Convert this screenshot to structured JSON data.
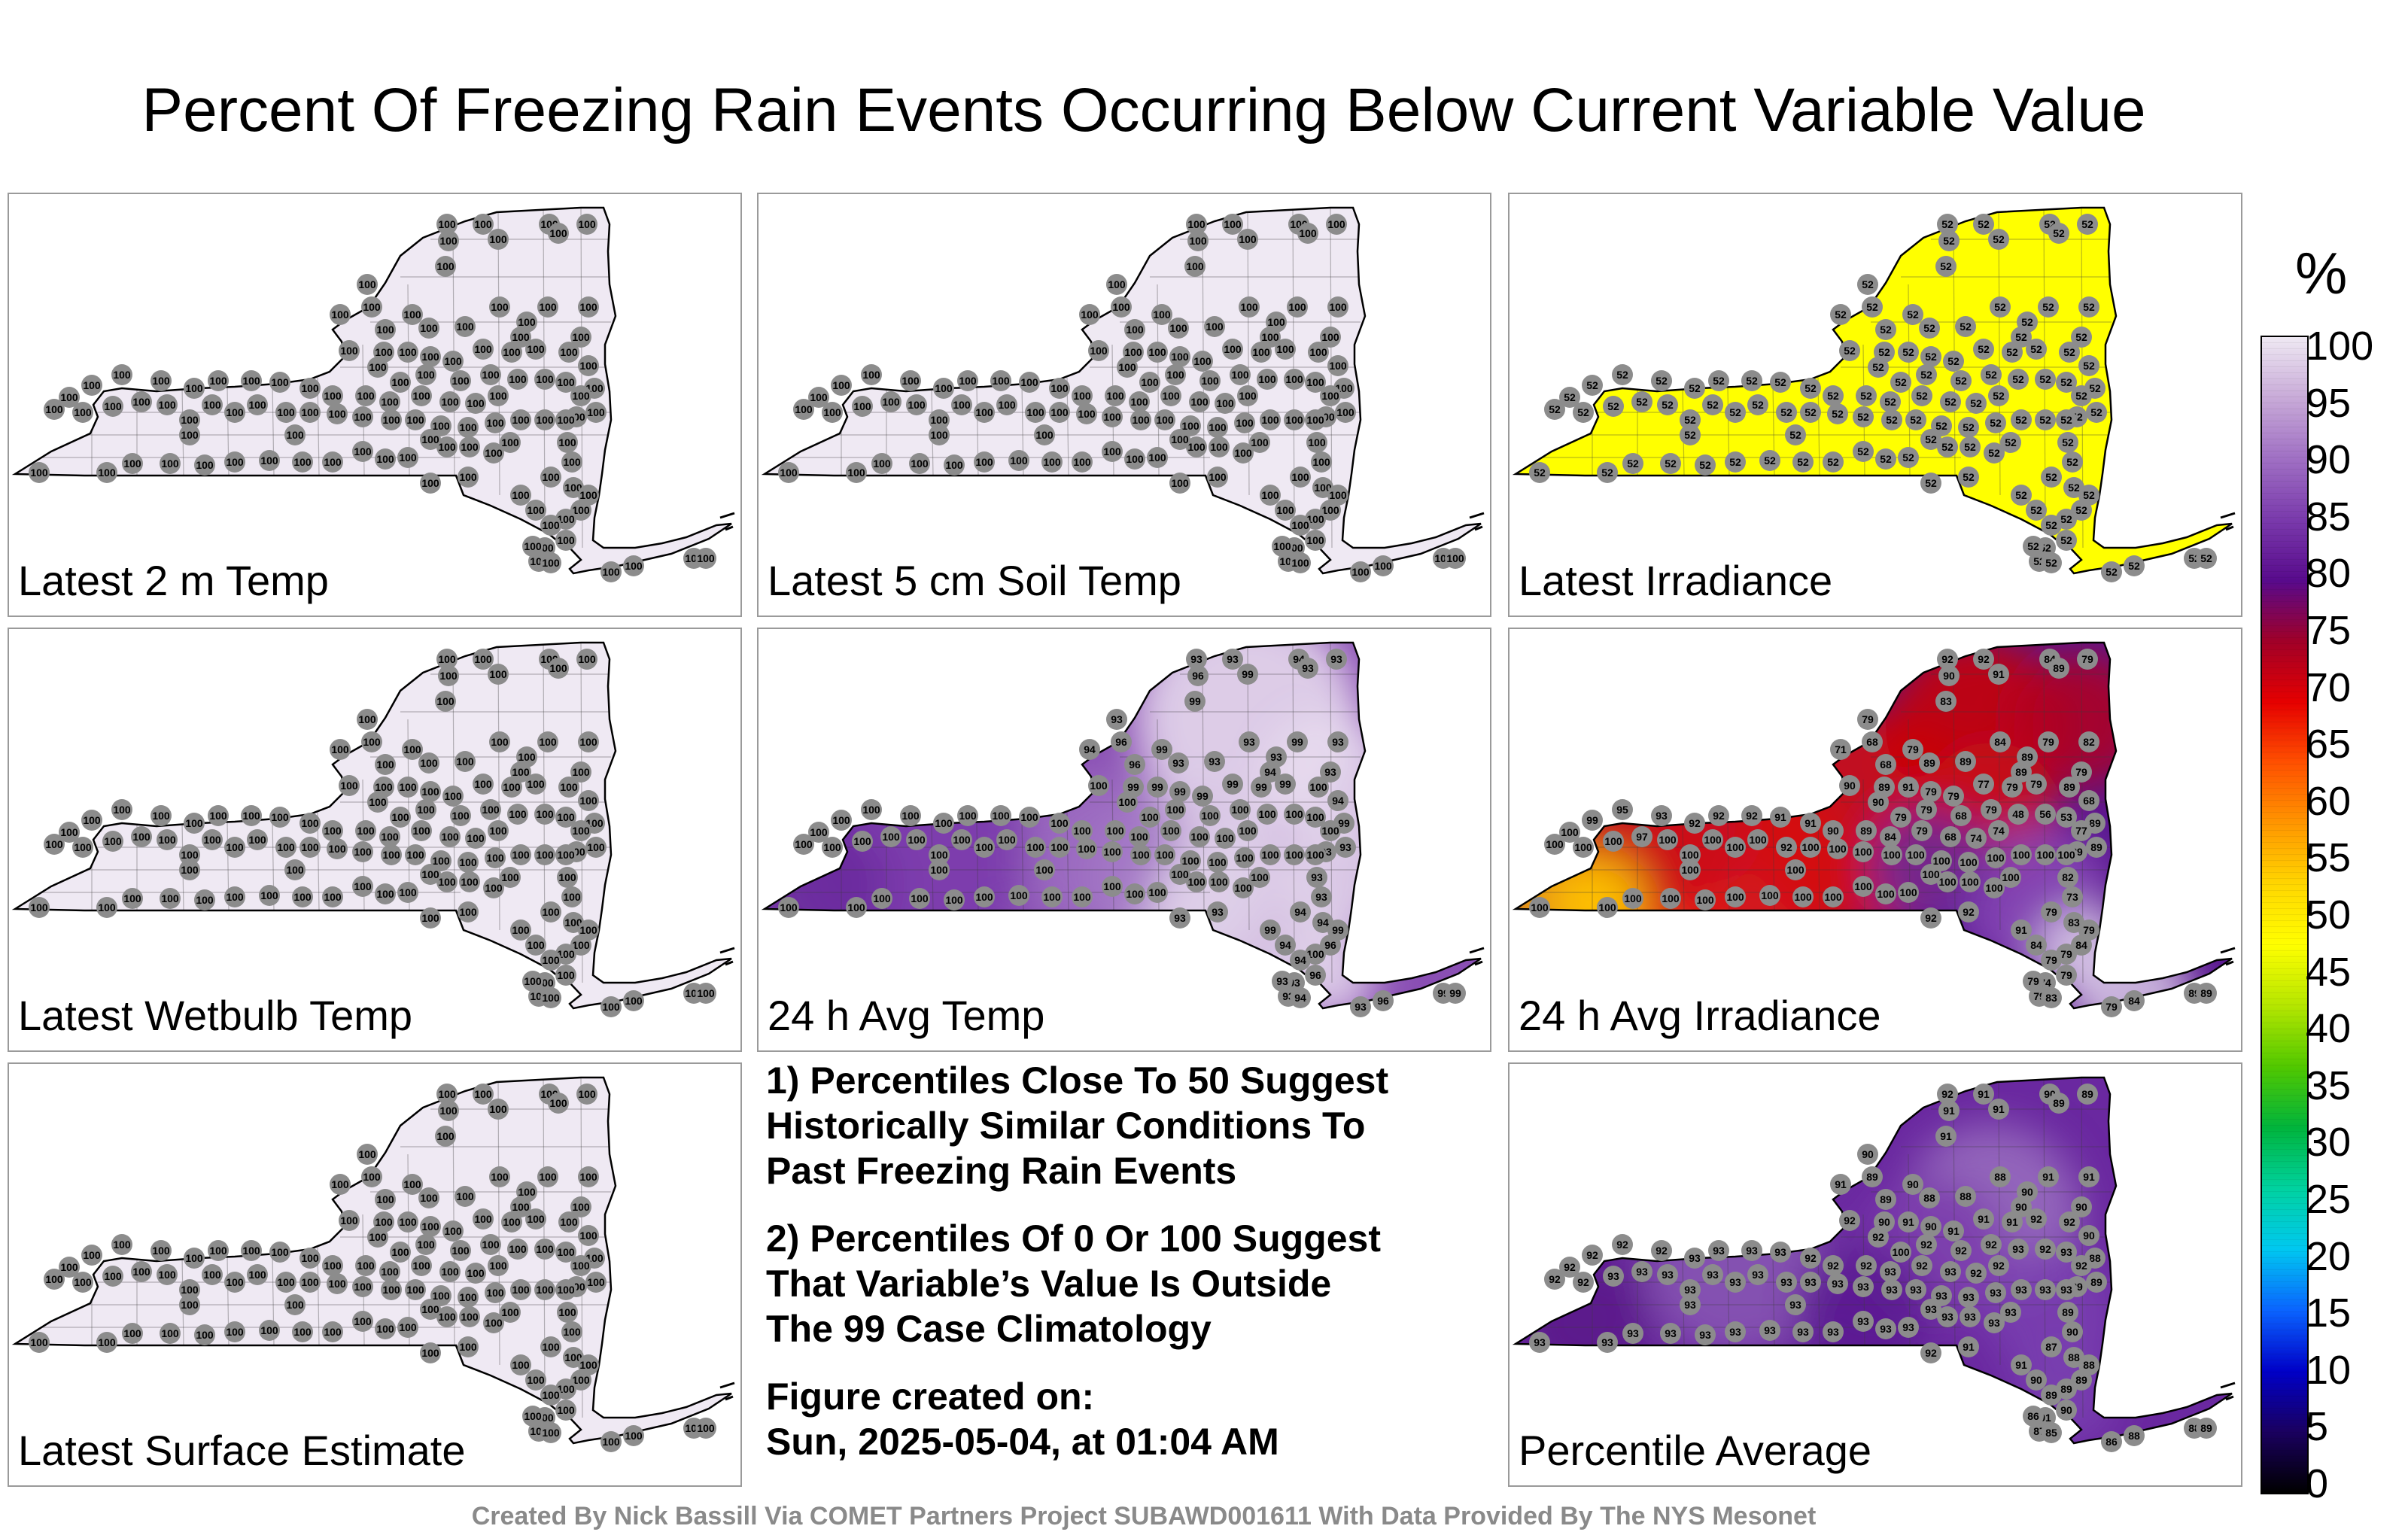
{
  "title": "Percent Of Freezing Rain Events Occurring Below Current Variable Value",
  "panels": [
    {
      "label": "Latest 2 m Temp",
      "field": "uniform",
      "base": "#efe9f3",
      "stations": "all100"
    },
    {
      "label": "Latest 5 cm Soil Temp",
      "field": "uniform",
      "base": "#efe9f3",
      "stations": "all100"
    },
    {
      "label": "Latest Irradiance",
      "field": "uniform",
      "base": "#ffff00",
      "stations": "all52"
    },
    {
      "label": "Latest Wetbulb Temp",
      "field": "uniform",
      "base": "#efe9f3",
      "stations": "all100"
    },
    {
      "label": "24 h Avg Temp",
      "field": "avgtemp",
      "base": "#8a4fb4",
      "stations": "avgtemp"
    },
    {
      "label": "24 h Avg Irradiance",
      "field": "avgirr",
      "base": "#5a1890",
      "stations": "avgirr"
    },
    {
      "label": "Latest Surface Estimate",
      "field": "uniform",
      "base": "#efe9f3",
      "stations": "all100"
    },
    {
      "label": "Percentile Average",
      "field": "pctavg",
      "base": "#6a28a0",
      "stations": "pctavg"
    }
  ],
  "notes": [
    [
      "1) Percentiles Close To 50 Suggest",
      "Historically Similar Conditions To",
      "Past Freezing Rain Events"
    ],
    [
      "2) Percentiles Of 0 Or 100 Suggest",
      "That Variable’s Value Is Outside",
      "The 99 Case Climatology"
    ],
    [
      "Figure created on:",
      "Sun, 2025-05-04, at 01:04 AM"
    ]
  ],
  "footer": "Created By Nick Bassill Via COMET Partners Project SUBAWD001611 With Data Provided By The NYS Mesonet",
  "colorbar": {
    "unit": "%",
    "ticks": [
      "100",
      "95",
      "90",
      "85",
      "80",
      "75",
      "70",
      "65",
      "60",
      "55",
      "50",
      "45",
      "40",
      "35",
      "30",
      "25",
      "20",
      "15",
      "10",
      "5",
      "0"
    ],
    "colors": [
      "#000000",
      "#1a0060",
      "#0000c8",
      "#0a64ff",
      "#00c8f0",
      "#00d2a0",
      "#00b43c",
      "#50c800",
      "#b4e600",
      "#ffff00",
      "#ffd700",
      "#ff9600",
      "#ff5000",
      "#e60000",
      "#a00028",
      "#580a8c",
      "#7a3aac",
      "#a070c4",
      "#c8aad8",
      "#efe9f3"
    ]
  },
  "station_values": {
    "avgtemp": [
      93,
      93,
      99,
      94,
      93,
      93,
      96,
      99,
      93,
      94,
      96,
      96,
      99,
      93,
      93,
      93,
      93,
      94,
      99,
      93,
      93,
      94,
      99,
      93,
      93,
      93,
      93,
      94,
      94,
      99,
      96,
      100,
      94,
      96,
      93,
      93,
      93,
      94,
      93,
      96,
      99,
      99,
      99,
      99,
      99,
      99,
      99,
      99,
      99,
      100,
      100,
      100,
      100,
      100,
      100,
      100,
      100,
      100,
      100,
      100,
      100,
      100,
      100,
      100,
      100,
      100,
      100,
      100,
      100,
      100,
      100,
      100,
      100,
      100,
      100,
      100,
      100,
      100,
      100,
      100,
      100,
      100,
      100,
      100,
      100,
      100,
      100,
      100,
      100,
      100,
      100,
      100,
      100,
      100,
      100,
      100,
      100,
      100,
      100,
      100,
      100,
      100,
      100,
      100,
      100,
      100,
      100,
      100,
      100,
      100,
      100,
      100,
      100,
      100,
      100,
      100
    ],
    "avgirr": [
      92,
      92,
      91,
      84,
      89,
      79,
      90,
      83,
      79,
      71,
      68,
      68,
      79,
      89,
      89,
      84,
      89,
      89,
      79,
      82,
      79,
      68,
      89,
      89,
      89,
      82,
      73,
      79,
      83,
      79,
      84,
      79,
      79,
      79,
      74,
      79,
      79,
      83,
      79,
      84,
      89,
      89,
      89,
      91,
      79,
      79,
      77,
      79,
      79,
      89,
      90,
      90,
      79,
      79,
      68,
      79,
      48,
      56,
      53,
      77,
      74,
      74,
      68,
      79,
      84,
      89,
      90,
      91,
      91,
      92,
      92,
      92,
      93,
      95,
      99,
      100,
      100,
      100,
      100,
      97,
      100,
      100,
      100,
      100,
      100,
      92,
      100,
      100,
      100,
      100,
      100,
      100,
      100,
      100,
      100,
      100,
      100,
      100,
      100,
      100,
      100,
      100,
      100,
      100,
      100,
      100,
      100,
      100,
      100,
      100,
      100,
      100,
      100,
      100,
      100,
      100
    ],
    "pctavg": [
      92,
      91,
      91,
      90,
      89,
      89,
      91,
      91,
      90,
      91,
      89,
      89,
      90,
      88,
      88,
      88,
      90,
      90,
      91,
      91,
      90,
      90,
      88,
      89,
      89,
      89,
      90,
      87,
      88,
      88,
      89,
      89,
      89,
      90,
      91,
      86,
      87,
      85,
      86,
      88,
      88,
      89,
      90,
      91,
      90,
      91,
      91,
      91,
      92,
      92,
      92,
      92,
      100,
      92,
      92,
      92,
      93,
      92,
      93,
      92,
      92,
      92,
      93,
      92,
      93,
      92,
      92,
      92,
      93,
      93,
      93,
      93,
      92,
      92,
      92,
      92,
      92,
      92,
      93,
      93,
      93,
      93,
      93,
      93,
      93,
      93,
      93,
      93,
      93,
      93,
      93,
      93,
      93,
      93,
      93,
      93,
      93,
      93,
      93,
      93,
      93,
      93,
      93,
      93,
      93,
      93,
      93,
      93,
      93,
      93,
      93,
      93,
      93,
      93,
      93,
      93
    ]
  }
}
